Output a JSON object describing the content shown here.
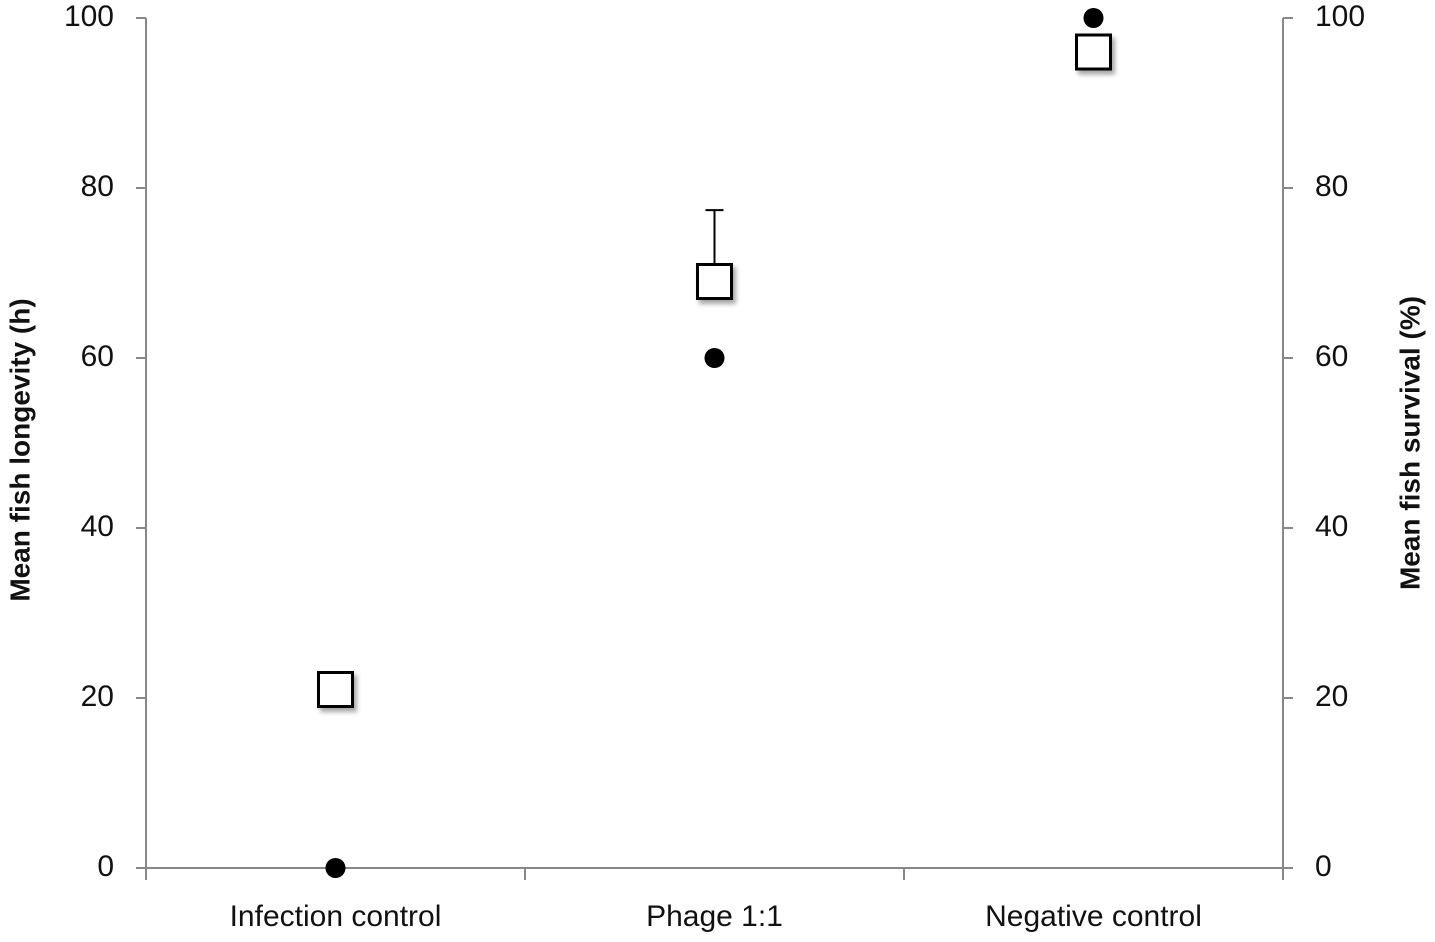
{
  "chart_data": {
    "type": "scatter",
    "categories": [
      "Infection control",
      "Phage 1:1",
      "Negative control"
    ],
    "y_label": "Mean fish longevity (h)",
    "y2_label": "Mean fish survival (%)",
    "ylim": [
      0,
      100
    ],
    "yticks": [
      0,
      20,
      40,
      60,
      80,
      100
    ],
    "y2lim": [
      0,
      100
    ],
    "y2ticks": [
      0,
      20,
      40,
      60,
      80,
      100
    ],
    "series": [
      {
        "marker": "square",
        "color": "#000000",
        "values": [
          21,
          69,
          96
        ],
        "errors": [
          null,
          8.4,
          null
        ]
      },
      {
        "marker": "circle",
        "color": "#000000",
        "values": [
          0,
          60,
          100
        ],
        "axis": "y2"
      }
    ]
  }
}
